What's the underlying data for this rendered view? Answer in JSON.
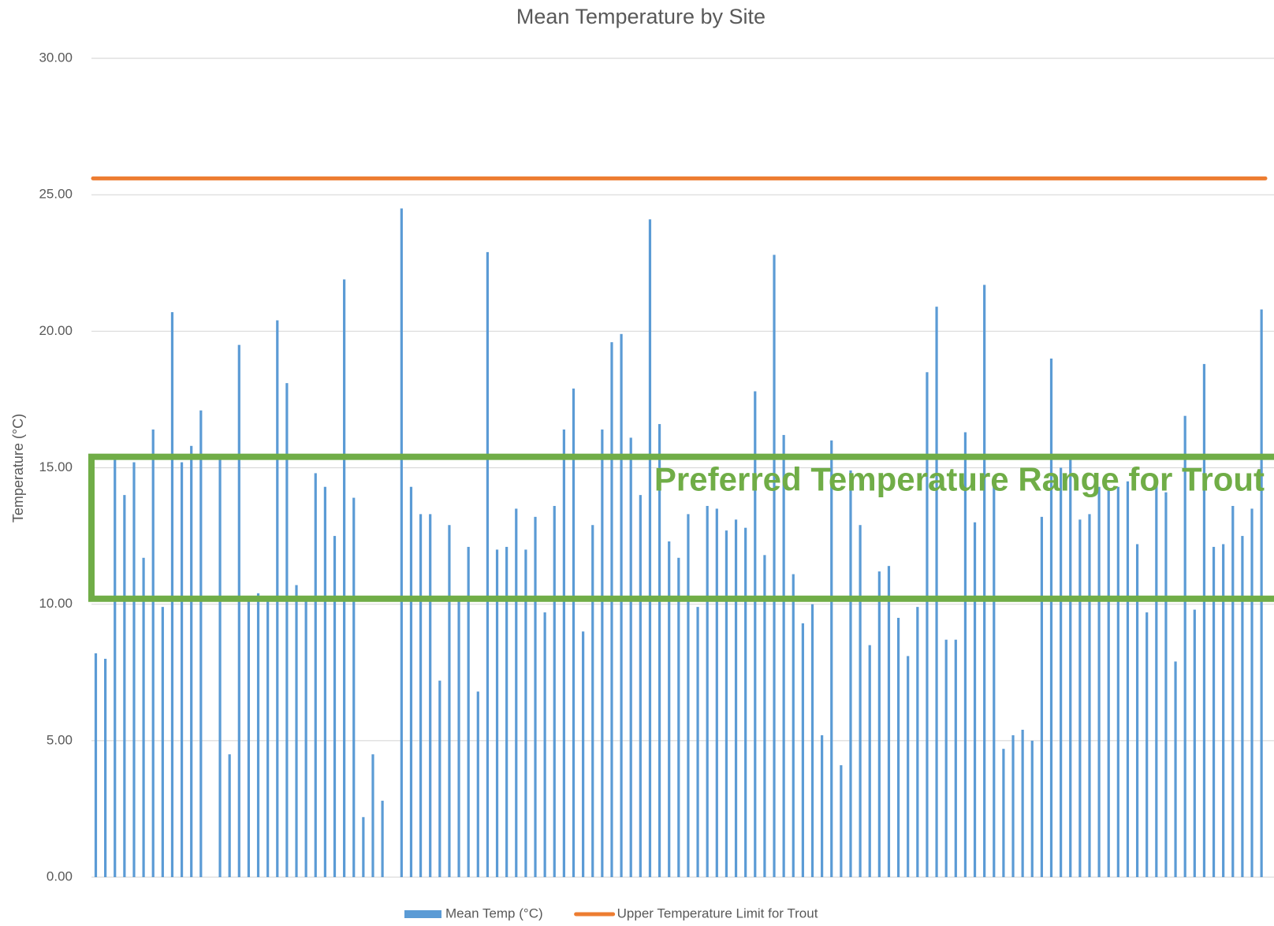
{
  "chart_data": {
    "type": "bar",
    "title": "Mean Temperature by Site",
    "y_label": "Temperature (°C)",
    "ylim": [
      0,
      30
    ],
    "yticks": [
      {
        "value": 0,
        "label": "0.00"
      },
      {
        "value": 5,
        "label": "5.00"
      },
      {
        "value": 10,
        "label": "10.00"
      },
      {
        "value": 15,
        "label": "15.00"
      },
      {
        "value": 20,
        "label": "20.00"
      },
      {
        "value": 25,
        "label": "25.00"
      },
      {
        "value": 30,
        "label": "30.00"
      }
    ],
    "grid": true,
    "legend": "bottom",
    "series": [
      {
        "name": "Mean Temp (°C)",
        "color": "#5b9bd5",
        "values": [
          8.2,
          8.0,
          15.4,
          14.0,
          15.2,
          11.7,
          16.4,
          9.9,
          20.7,
          15.2,
          15.8,
          17.1,
          null,
          15.4,
          4.5,
          19.5,
          10.3,
          10.4,
          10.2,
          20.4,
          18.1,
          10.7,
          10.2,
          14.8,
          14.3,
          12.5,
          21.9,
          13.9,
          2.2,
          4.5,
          2.8,
          null,
          24.5,
          14.3,
          13.3,
          13.3,
          7.2,
          12.9,
          10.2,
          12.1,
          6.8,
          22.9,
          12.0,
          12.1,
          13.5,
          12.0,
          13.2,
          9.7,
          13.6,
          16.4,
          17.9,
          9.0,
          12.9,
          16.4,
          19.6,
          19.9,
          16.1,
          14.0,
          24.1,
          16.6,
          12.3,
          11.7,
          13.3,
          9.9,
          13.6,
          13.5,
          12.7,
          13.1,
          12.8,
          17.8,
          11.8,
          22.8,
          16.2,
          11.1,
          9.3,
          10.0,
          5.2,
          16.0,
          4.1,
          14.9,
          12.9,
          8.5,
          11.2,
          11.4,
          9.5,
          8.1,
          9.9,
          18.5,
          20.9,
          8.7,
          8.7,
          16.3,
          13.0,
          21.7,
          14.5,
          4.7,
          5.2,
          5.4,
          5.0,
          13.2,
          19.0,
          15.0,
          15.4,
          13.1,
          13.3,
          14.3,
          14.2,
          14.3,
          14.5,
          12.2,
          9.7,
          14.4,
          14.1,
          7.9,
          16.9,
          9.8,
          18.8,
          12.1,
          12.2,
          13.6,
          12.5,
          13.5,
          20.8
        ]
      }
    ],
    "reference_lines": [
      {
        "name": "Upper Temperature Limit for Trout",
        "color": "#ed7d31",
        "value": 25.6
      }
    ],
    "annotations": [
      {
        "text": "Preferred Temperature Range for Trout",
        "color": "#70ad47",
        "range": [
          10.2,
          15.4
        ]
      }
    ]
  }
}
